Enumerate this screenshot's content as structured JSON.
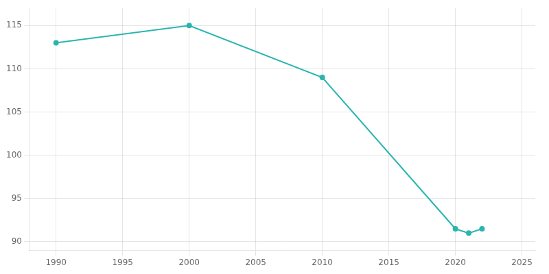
{
  "chart_data": {
    "type": "line",
    "x": [
      1990,
      2000,
      2010,
      2020,
      2021,
      2022
    ],
    "values": [
      113,
      115,
      109,
      91.5,
      91,
      91.5
    ],
    "color": "#2ab5b0",
    "marker": "circle",
    "xlim": [
      1988,
      2026
    ],
    "xticks": [
      1990,
      1995,
      2000,
      2005,
      2010,
      2015,
      2020,
      2025
    ],
    "ylim": [
      89,
      117
    ],
    "yticks": [
      90,
      95,
      100,
      105,
      110,
      115
    ],
    "grid": true
  }
}
